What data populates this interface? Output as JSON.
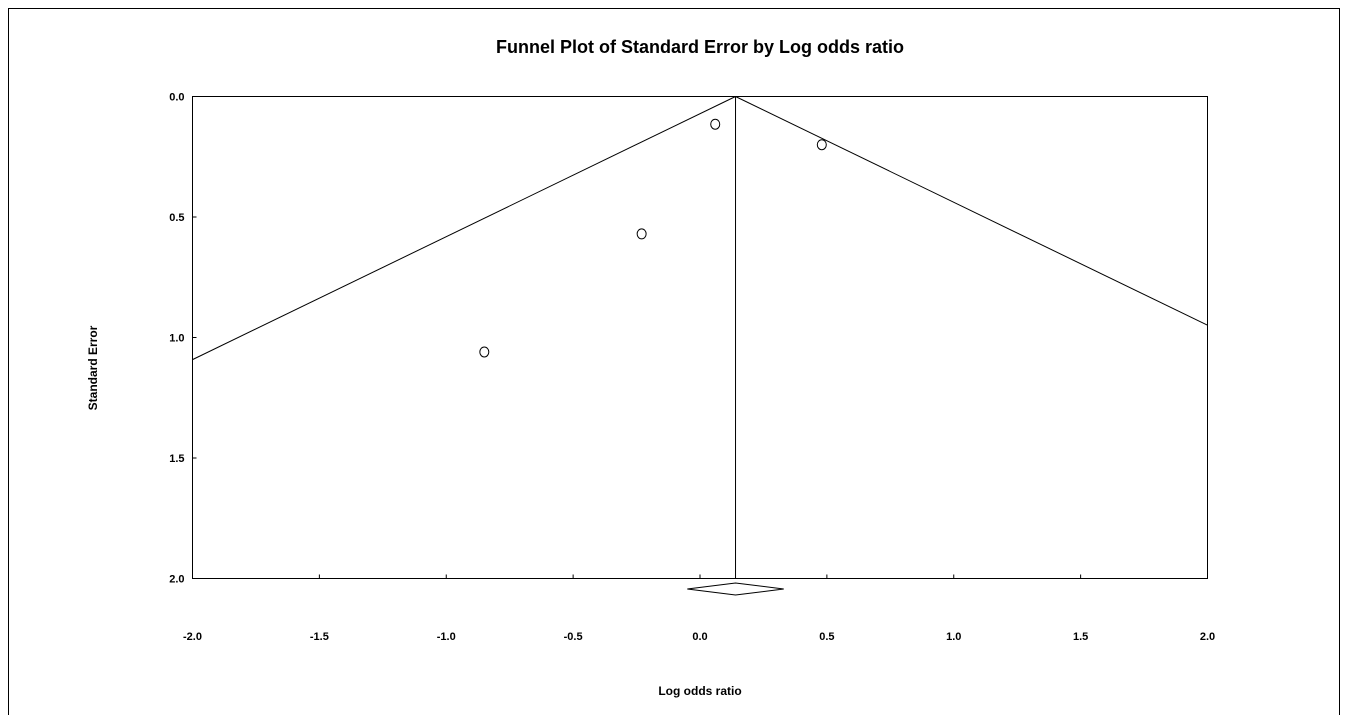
{
  "chart_data": {
    "type": "scatter",
    "title": "Funnel Plot of Standard Error by Log odds ratio",
    "xlabel": "Log odds ratio",
    "ylabel": "Standard Error",
    "xlim": [
      -2.0,
      2.0
    ],
    "ylim": [
      0.0,
      2.0
    ],
    "y_inverted": true,
    "grid": false,
    "x_ticks": [
      "-2.0",
      "-1.5",
      "-1.0",
      "-0.5",
      "0.0",
      "0.5",
      "1.0",
      "1.5",
      "2.0"
    ],
    "x_tick_values": [
      -2.0,
      -1.5,
      -1.0,
      -0.5,
      0.0,
      0.5,
      1.0,
      1.5,
      2.0
    ],
    "y_ticks": [
      "0.0",
      "0.5",
      "1.0",
      "1.5",
      "2.0"
    ],
    "y_tick_values": [
      0.0,
      0.5,
      1.0,
      1.5,
      2.0
    ],
    "points": [
      {
        "x": 0.06,
        "y": 0.115
      },
      {
        "x": 0.48,
        "y": 0.2
      },
      {
        "x": -0.23,
        "y": 0.57
      },
      {
        "x": -0.85,
        "y": 1.06
      }
    ],
    "summary_effect": 0.14,
    "summary_ci": [
      -0.05,
      0.33
    ],
    "funnel_multiplier": 1.96,
    "colors": {
      "lines": "#000000",
      "points": "#000000",
      "background": "#ffffff"
    }
  }
}
